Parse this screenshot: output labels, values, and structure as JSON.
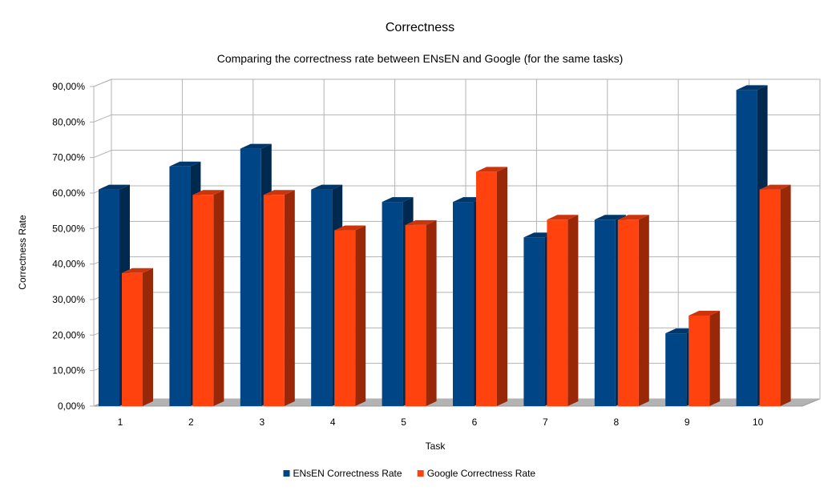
{
  "chart_data": {
    "type": "bar",
    "title": "Correctness",
    "subtitle": "Comparing the correctness rate between ENsEN and Google (for the same tasks)",
    "xlabel": "Task",
    "ylabel": "Correctness Rate",
    "categories": [
      "1",
      "2",
      "3",
      "4",
      "5",
      "6",
      "7",
      "8",
      "9",
      "10"
    ],
    "series": [
      {
        "name": "ENsEN Correctness Rate",
        "color": "#004586",
        "values": [
          61,
          67.5,
          72.5,
          61,
          57.5,
          57.5,
          47.5,
          52.5,
          20.5,
          89
        ]
      },
      {
        "name": "Google Correctness Rate",
        "color": "#ff420e",
        "values": [
          37.5,
          59.5,
          59.5,
          49.5,
          51,
          66,
          52.5,
          52.5,
          25.5,
          61
        ]
      }
    ],
    "ylim": [
      0,
      90
    ],
    "yticks": [
      0,
      10,
      20,
      30,
      40,
      50,
      60,
      70,
      80,
      90
    ],
    "ytick_labels": [
      "0,00%",
      "10,00%",
      "20,00%",
      "30,00%",
      "40,00%",
      "50,00%",
      "60,00%",
      "70,00%",
      "80,00%",
      "90,00%"
    ],
    "grid": true,
    "legend_position": "bottom",
    "style": "3d"
  }
}
